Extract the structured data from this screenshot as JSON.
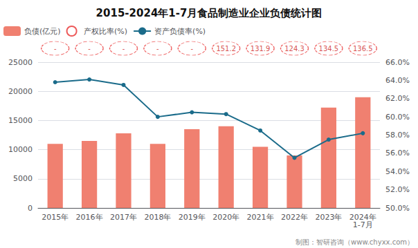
{
  "chart_data": {
    "type": "bar",
    "title": "2015-2024年1-7月食品制造业企业负债统计图",
    "categories": [
      "2015年",
      "2016年",
      "2017年",
      "2018年",
      "2019年",
      "2020年",
      "2021年",
      "2022年",
      "2023年",
      "2024年\n1-7月"
    ],
    "series": [
      {
        "name": "负债(亿元)",
        "type": "bar",
        "color": "#F08070",
        "values": [
          11000,
          11500,
          12800,
          11000,
          13500,
          14000,
          10500,
          9000,
          17200,
          19000
        ]
      },
      {
        "name": "产权比率(%)",
        "type": "scatter",
        "color": "#E83030",
        "marker": "circle",
        "line_style": "dashed",
        "data_labels": true,
        "values": [
          null,
          null,
          null,
          null,
          null,
          151.2,
          131.9,
          124.3,
          134.5,
          136.5
        ],
        "value_labels": [
          "-",
          "-",
          "-",
          "-",
          "-",
          "151.2",
          "131.9",
          "124.3",
          "134.5",
          "136.5"
        ]
      },
      {
        "name": "资产负债率(%)",
        "type": "line",
        "color": "#1A6B8A",
        "marker": "circle",
        "axis": "y2",
        "values": [
          63.8,
          64.1,
          63.5,
          60.0,
          60.5,
          60.3,
          58.5,
          55.5,
          57.5,
          58.2
        ]
      }
    ],
    "ylim": [
      0,
      25000
    ],
    "yticks": [
      0,
      5000,
      10000,
      15000,
      20000,
      25000
    ],
    "y2lim": [
      50.0,
      66.0
    ],
    "y2ticks": [
      {
        "value": 50.0,
        "label": "50.0%"
      },
      {
        "value": 52.0,
        "label": "52.0%"
      },
      {
        "value": 54.0,
        "label": "54.0%"
      },
      {
        "value": 56.0,
        "label": "56.0%"
      },
      {
        "value": 58.0,
        "label": "58.0%"
      },
      {
        "value": 60.0,
        "label": "60.0%"
      },
      {
        "value": 62.0,
        "label": "62.0%"
      },
      {
        "value": 64.0,
        "label": "64.0%"
      },
      {
        "value": 66.0,
        "label": "66.0%"
      }
    ],
    "grid": true,
    "legend": "upper left",
    "annotations": [
      "制图：智研咨询（www.chyxx.com）"
    ]
  }
}
